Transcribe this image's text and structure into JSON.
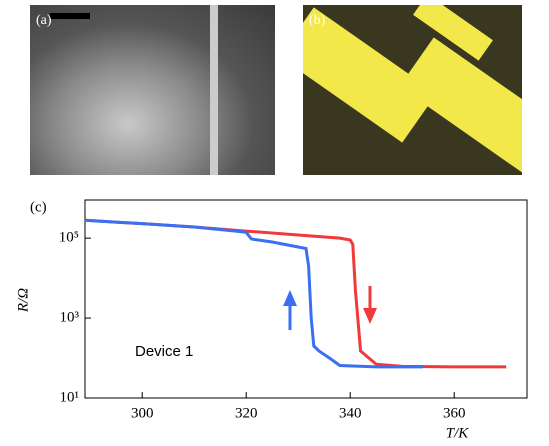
{
  "panels": [
    {
      "label": "(a)"
    },
    {
      "label": "(b)"
    }
  ],
  "chart_data": {
    "type": "line",
    "panel_label": "(c)",
    "x_label": "T/K",
    "y_label": "R/Ω",
    "annotation": "Device 1",
    "xlim": [
      289,
      374
    ],
    "xticks": [
      300,
      320,
      340,
      360
    ],
    "ylim": [
      10,
      900000
    ],
    "log_y": true,
    "yticks": [
      {
        "value": 10,
        "label": "10¹"
      },
      {
        "value": 1000,
        "label": "10³"
      },
      {
        "value": 100000,
        "label": "10⁵"
      }
    ],
    "series": [
      {
        "color": "#f03a3a",
        "x": [
          289,
          300,
          310,
          320,
          330,
          338,
          340,
          340.5,
          341,
          342,
          345,
          350,
          360,
          370
        ],
        "values": [
          280000,
          230000,
          190000,
          150000,
          120000,
          100000,
          90000,
          70000,
          5000,
          150,
          70,
          62,
          60,
          60
        ]
      },
      {
        "color": "#3a6ff0",
        "x": [
          289,
          300,
          310,
          318,
          320,
          321,
          325,
          330,
          331.5,
          332,
          332.5,
          333,
          334,
          336,
          338,
          345,
          354
        ],
        "values": [
          280000,
          230000,
          190000,
          150000,
          140000,
          95000,
          80000,
          60000,
          55000,
          20000,
          1000,
          200,
          150,
          100,
          65,
          60,
          60
        ]
      }
    ]
  }
}
